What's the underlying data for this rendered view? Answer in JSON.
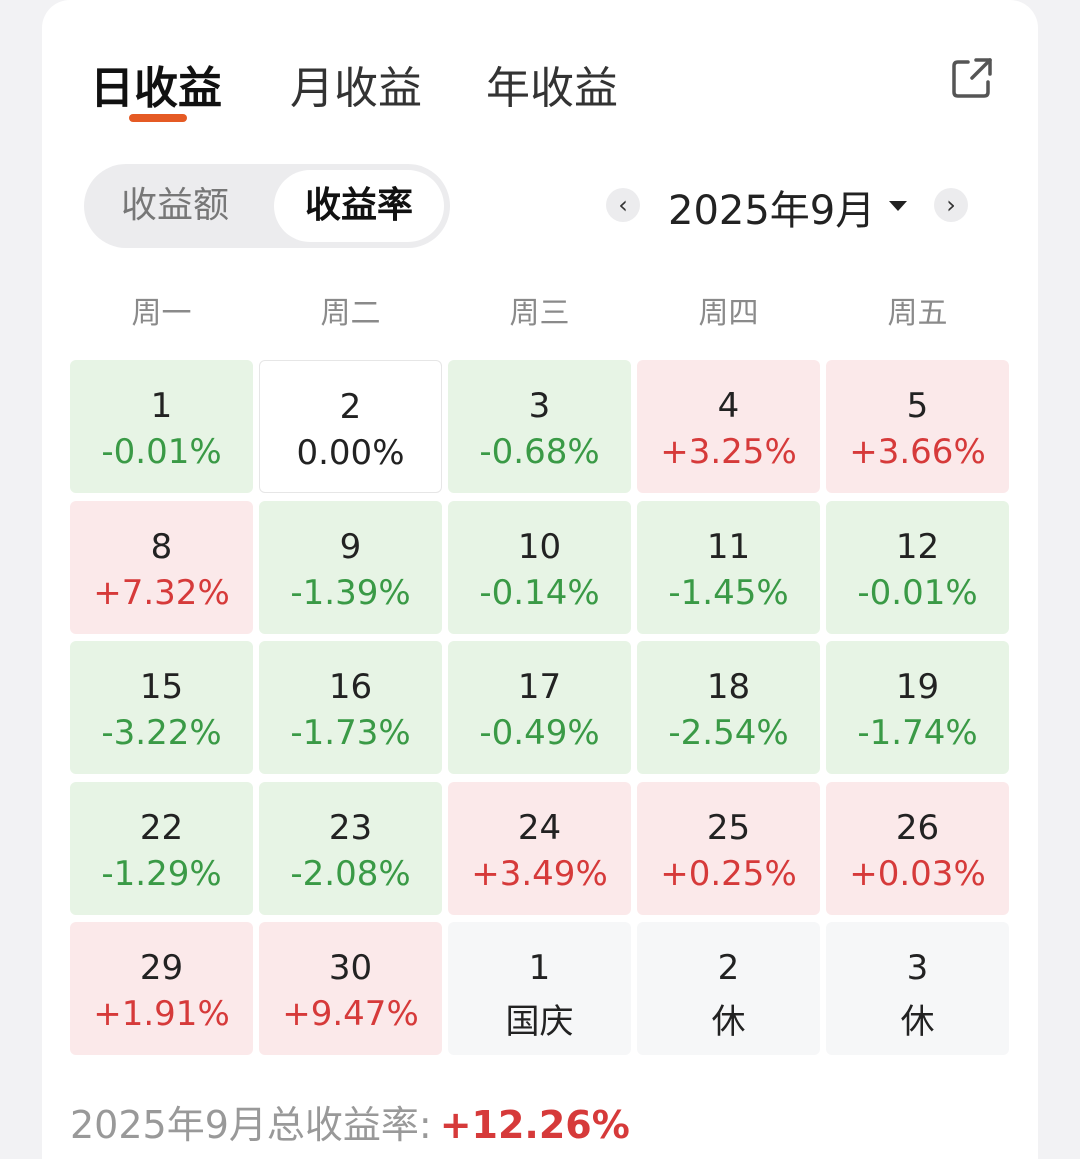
{
  "tabs": [
    {
      "label": "日收益",
      "active": true
    },
    {
      "label": "月收益",
      "active": false
    },
    {
      "label": "年收益",
      "active": false
    }
  ],
  "segment": {
    "options": [
      "收益额",
      "收益率"
    ],
    "selected": "收益率"
  },
  "month": {
    "label": "2025年9月"
  },
  "weekdays": [
    "周一",
    "周二",
    "周三",
    "周四",
    "周五"
  ],
  "cells": [
    {
      "day": "1",
      "value": "-0.01%",
      "kind": "down"
    },
    {
      "day": "2",
      "value": "0.00%",
      "kind": "flat"
    },
    {
      "day": "3",
      "value": "-0.68%",
      "kind": "down"
    },
    {
      "day": "4",
      "value": "+3.25%",
      "kind": "up"
    },
    {
      "day": "5",
      "value": "+3.66%",
      "kind": "up"
    },
    {
      "day": "8",
      "value": "+7.32%",
      "kind": "up"
    },
    {
      "day": "9",
      "value": "-1.39%",
      "kind": "down"
    },
    {
      "day": "10",
      "value": "-0.14%",
      "kind": "down"
    },
    {
      "day": "11",
      "value": "-1.45%",
      "kind": "down"
    },
    {
      "day": "12",
      "value": "-0.01%",
      "kind": "down"
    },
    {
      "day": "15",
      "value": "-3.22%",
      "kind": "down"
    },
    {
      "day": "16",
      "value": "-1.73%",
      "kind": "down"
    },
    {
      "day": "17",
      "value": "-0.49%",
      "kind": "down"
    },
    {
      "day": "18",
      "value": "-2.54%",
      "kind": "down"
    },
    {
      "day": "19",
      "value": "-1.74%",
      "kind": "down"
    },
    {
      "day": "22",
      "value": "-1.29%",
      "kind": "down"
    },
    {
      "day": "23",
      "value": "-2.08%",
      "kind": "down"
    },
    {
      "day": "24",
      "value": "+3.49%",
      "kind": "up"
    },
    {
      "day": "25",
      "value": "+0.25%",
      "kind": "up"
    },
    {
      "day": "26",
      "value": "+0.03%",
      "kind": "up"
    },
    {
      "day": "29",
      "value": "+1.91%",
      "kind": "up"
    },
    {
      "day": "30",
      "value": "+9.47%",
      "kind": "up"
    },
    {
      "day": "1",
      "value": "国庆",
      "kind": "holiday"
    },
    {
      "day": "2",
      "value": "休",
      "kind": "holiday"
    },
    {
      "day": "3",
      "value": "休",
      "kind": "holiday"
    }
  ],
  "total": {
    "label": "2025年9月总收益率:",
    "value": "+12.26%"
  },
  "colors": {
    "accent": "#e55a24",
    "up": "#d63a3a",
    "down": "#3a9a46",
    "up_bg": "#fbe9ea",
    "down_bg": "#e7f4e5"
  },
  "icons": {
    "share": "share-icon",
    "prev": "chevron-left-icon",
    "next": "chevron-right-icon",
    "dropdown": "caret-down-icon"
  }
}
